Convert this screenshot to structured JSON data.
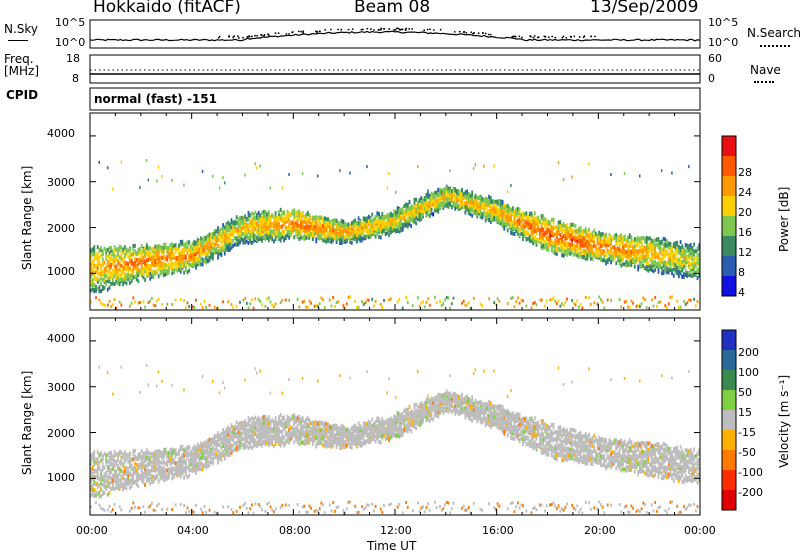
{
  "header": {
    "title": "Hokkaido (fitACF)",
    "beam": "Beam 08",
    "date": "13/Sep/2009"
  },
  "status_panels": {
    "nsky": {
      "label": "N.Sky",
      "left_ticks": [
        "10^5",
        "10^0"
      ]
    },
    "nsearch": {
      "label": "N.Search",
      "right_ticks": [
        "10^5",
        "10^0"
      ]
    },
    "freq": {
      "label_line1": "Freq.",
      "label_line2": "[MHz]",
      "left_ticks": [
        "18",
        "8"
      ]
    },
    "nave": {
      "label": "Nave",
      "right_ticks": [
        "60",
        "0"
      ]
    },
    "cpid": {
      "label": "CPID",
      "mode": "normal (fast) -151"
    }
  },
  "power_panel": {
    "ylabel": "Slant Range [km]",
    "yticks": [
      "4000",
      "3000",
      "2000",
      "1000"
    ],
    "colorbar_label": "Power [dB]",
    "colorbar_ticks": [
      "28",
      "24",
      "20",
      "16",
      "12",
      "8",
      "4"
    ],
    "colors": [
      "#1010e0",
      "#2a5db0",
      "#3a8a60",
      "#7ec850",
      "#ffd000",
      "#ff9a00",
      "#ff5a00",
      "#e81010"
    ]
  },
  "velocity_panel": {
    "ylabel": "Slant Range [km]",
    "yticks": [
      "4000",
      "3000",
      "2000",
      "1000"
    ],
    "colorbar_label": "Velocity [m s⁻¹]",
    "colorbar_ticks": [
      "200",
      "100",
      "50",
      "15",
      "-15",
      "-50",
      "-100",
      "-200"
    ],
    "colors": [
      "#2030c0",
      "#2a6a9a",
      "#3a8a50",
      "#7ed040",
      "#bdbdbd",
      "#ffb000",
      "#ff7a00",
      "#ff3000",
      "#e00000"
    ]
  },
  "x_axis": {
    "label": "Time UT",
    "ticks": [
      "00:00",
      "04:00",
      "08:00",
      "12:00",
      "16:00",
      "20:00",
      "00:00"
    ]
  },
  "chart_data": [
    {
      "type": "heatmap",
      "title": "Power [dB]",
      "xlabel": "Time UT",
      "ylabel": "Slant Range [km]",
      "xlim": [
        0,
        24
      ],
      "ylim": [
        200,
        4500
      ],
      "color_range": [
        0,
        30
      ],
      "echo_bands": [
        {
          "t": 0,
          "range_low": 600,
          "range_high": 1600,
          "power": 20
        },
        {
          "t": 2,
          "range_low": 900,
          "range_high": 1600,
          "power": 24
        },
        {
          "t": 4,
          "range_low": 1100,
          "range_high": 1700,
          "power": 22
        },
        {
          "t": 6,
          "range_low": 1700,
          "range_high": 2300,
          "power": 18
        },
        {
          "t": 8,
          "range_low": 1800,
          "range_high": 2400,
          "power": 24
        },
        {
          "t": 10,
          "range_low": 1700,
          "range_high": 2100,
          "power": 22
        },
        {
          "t": 12,
          "range_low": 1900,
          "range_high": 2400,
          "power": 18
        },
        {
          "t": 14,
          "range_low": 2500,
          "range_high": 2900,
          "power": 20
        },
        {
          "t": 16,
          "range_low": 2100,
          "range_high": 2600,
          "power": 20
        },
        {
          "t": 18,
          "range_low": 1500,
          "range_high": 2200,
          "power": 26
        },
        {
          "t": 20,
          "range_low": 1300,
          "range_high": 1900,
          "power": 24
        },
        {
          "t": 22,
          "range_low": 1100,
          "range_high": 1800,
          "power": 20
        },
        {
          "t": 24,
          "range_low": 900,
          "range_high": 1600,
          "power": 16
        }
      ]
    },
    {
      "type": "heatmap",
      "title": "Velocity [m s⁻¹]",
      "xlabel": "Time UT",
      "ylabel": "Slant Range [km]",
      "xlim": [
        0,
        24
      ],
      "ylim": [
        200,
        4500
      ],
      "color_range": [
        -200,
        200
      ],
      "dominant_value": "near zero (-15 to 15)"
    }
  ]
}
